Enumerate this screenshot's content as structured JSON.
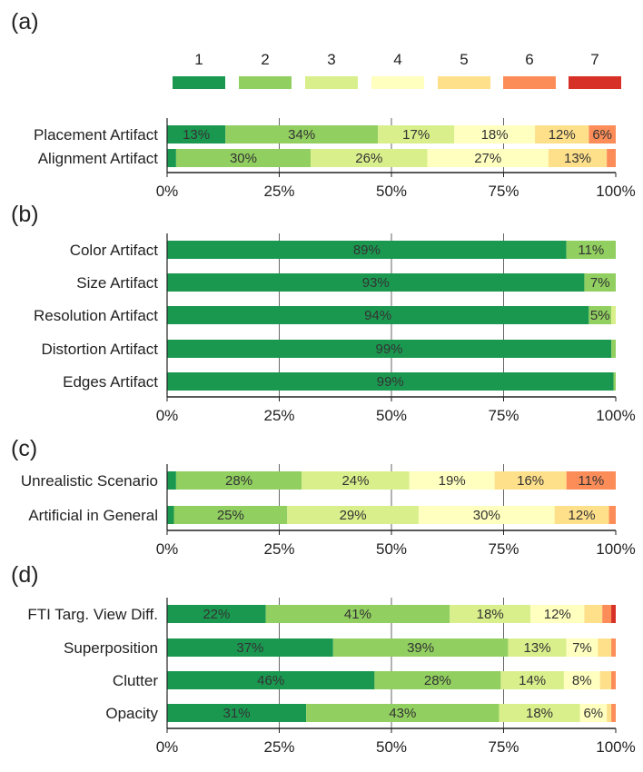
{
  "legend": {
    "labels": [
      "1",
      "2",
      "3",
      "4",
      "5",
      "6",
      "7"
    ],
    "colors": [
      "#1a9850",
      "#91cf60",
      "#d9ef8b",
      "#ffffbf",
      "#fee08b",
      "#fc8d59",
      "#d73027"
    ]
  },
  "chart_data": [
    {
      "type": "bar",
      "panel": "(a)",
      "stacked": true,
      "orientation": "horizontal",
      "categories": [
        "Placement Artifact",
        "Alignment Artifact"
      ],
      "series": [
        {
          "name": "1",
          "values": [
            13,
            2
          ]
        },
        {
          "name": "2",
          "values": [
            34,
            30
          ]
        },
        {
          "name": "3",
          "values": [
            17,
            26
          ]
        },
        {
          "name": "4",
          "values": [
            18,
            27
          ]
        },
        {
          "name": "5",
          "values": [
            12,
            13
          ]
        },
        {
          "name": "6",
          "values": [
            6,
            2
          ]
        },
        {
          "name": "7",
          "values": [
            0,
            0
          ]
        }
      ],
      "segment_labels": [
        [
          "13%",
          "34%",
          "17%",
          "18%",
          "12%",
          "6%",
          ""
        ],
        [
          "",
          "30%",
          "26%",
          "27%",
          "13%",
          "",
          ""
        ]
      ],
      "xticks": [
        "0%",
        "25%",
        "50%",
        "75%",
        "100%"
      ],
      "xlim": [
        0,
        100
      ]
    },
    {
      "type": "bar",
      "panel": "(b)",
      "stacked": true,
      "orientation": "horizontal",
      "categories": [
        "Color Artifact",
        "Size Artifact",
        "Resolution Artifact",
        "Distortion Artifact",
        "Edges Artifact"
      ],
      "series": [
        {
          "name": "1",
          "values": [
            89,
            93,
            94,
            99,
            99.5
          ]
        },
        {
          "name": "2",
          "values": [
            11,
            7,
            5,
            1,
            0.5
          ]
        },
        {
          "name": "3",
          "values": [
            0,
            0,
            1,
            0,
            0
          ]
        },
        {
          "name": "4",
          "values": [
            0,
            0,
            0,
            0,
            0
          ]
        },
        {
          "name": "5",
          "values": [
            0,
            0,
            0,
            0,
            0
          ]
        },
        {
          "name": "6",
          "values": [
            0,
            0,
            0,
            0,
            0
          ]
        },
        {
          "name": "7",
          "values": [
            0,
            0,
            0,
            0,
            0
          ]
        }
      ],
      "segment_labels": [
        [
          "89%",
          "11%",
          "",
          "",
          "",
          "",
          ""
        ],
        [
          "93%",
          "7%",
          "",
          "",
          "",
          "",
          ""
        ],
        [
          "94%",
          "5%",
          "",
          "",
          "",
          "",
          ""
        ],
        [
          "99%",
          "",
          "",
          "",
          "",
          "",
          ""
        ],
        [
          "99%",
          "",
          "",
          "",
          "",
          "",
          ""
        ]
      ],
      "xticks": [
        "0%",
        "25%",
        "50%",
        "75%",
        "100%"
      ],
      "xlim": [
        0,
        100
      ]
    },
    {
      "type": "bar",
      "panel": "(c)",
      "stacked": true,
      "orientation": "horizontal",
      "categories": [
        "Unrealistic Scenario",
        "Artificial in General"
      ],
      "series": [
        {
          "name": "1",
          "values": [
            2,
            1.5
          ]
        },
        {
          "name": "2",
          "values": [
            28,
            25
          ]
        },
        {
          "name": "3",
          "values": [
            24,
            29
          ]
        },
        {
          "name": "4",
          "values": [
            19,
            30
          ]
        },
        {
          "name": "5",
          "values": [
            16,
            12
          ]
        },
        {
          "name": "6",
          "values": [
            11,
            1.5
          ]
        },
        {
          "name": "7",
          "values": [
            0,
            0
          ]
        }
      ],
      "segment_labels": [
        [
          "",
          "28%",
          "24%",
          "19%",
          "16%",
          "11%",
          ""
        ],
        [
          "",
          "25%",
          "29%",
          "30%",
          "12%",
          "",
          ""
        ]
      ],
      "xticks": [
        "0%",
        "25%",
        "50%",
        "75%",
        "100%"
      ],
      "xlim": [
        0,
        100
      ]
    },
    {
      "type": "bar",
      "panel": "(d)",
      "stacked": true,
      "orientation": "horizontal",
      "categories": [
        "FTI Targ. View Diff.",
        "Superposition",
        "Clutter",
        "Opacity"
      ],
      "series": [
        {
          "name": "1",
          "values": [
            22,
            37,
            46,
            31
          ]
        },
        {
          "name": "2",
          "values": [
            41,
            39,
            28,
            43
          ]
        },
        {
          "name": "3",
          "values": [
            18,
            13,
            14,
            18
          ]
        },
        {
          "name": "4",
          "values": [
            12,
            7,
            8,
            6
          ]
        },
        {
          "name": "5",
          "values": [
            4,
            3,
            2.5,
            1
          ]
        },
        {
          "name": "6",
          "values": [
            2,
            1,
            1,
            1
          ]
        },
        {
          "name": "7",
          "values": [
            1,
            0,
            0,
            0
          ]
        }
      ],
      "segment_labels": [
        [
          "22%",
          "41%",
          "18%",
          "12%",
          "",
          "",
          ""
        ],
        [
          "37%",
          "39%",
          "13%",
          "7%",
          "",
          "",
          ""
        ],
        [
          "46%",
          "28%",
          "14%",
          "8%",
          "",
          "",
          ""
        ],
        [
          "31%",
          "43%",
          "18%",
          "6%",
          "",
          "",
          ""
        ]
      ],
      "xticks": [
        "0%",
        "25%",
        "50%",
        "75%",
        "100%"
      ],
      "xlim": [
        0,
        100
      ]
    }
  ]
}
